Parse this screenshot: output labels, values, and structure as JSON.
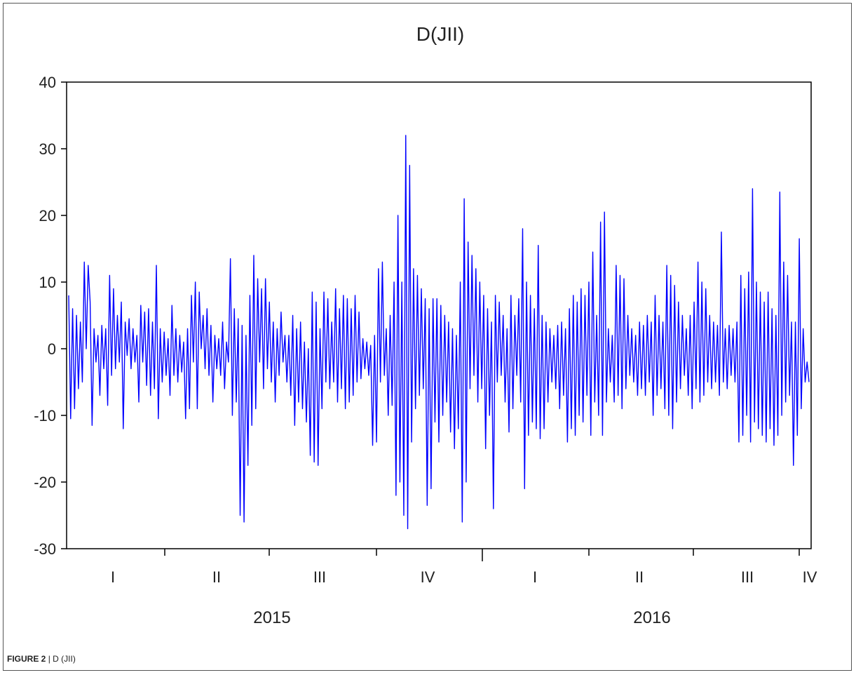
{
  "chart_data": {
    "type": "line",
    "title": "D(JII)",
    "xlabel": "",
    "ylabel": "",
    "ylim": [
      -30,
      40
    ],
    "yticks": [
      40,
      30,
      20,
      10,
      0,
      -10,
      -20,
      -30
    ],
    "grid": false,
    "legend": "none",
    "line_color": "#0000ff",
    "quarter_labels": [
      "I",
      "II",
      "III",
      "IV",
      "I",
      "II",
      "III",
      "IV"
    ],
    "year_labels": [
      "2015",
      "2016"
    ],
    "series": [
      {
        "values": [
          8,
          -10.5,
          6,
          -9,
          5,
          -6,
          4,
          -5,
          13,
          0,
          12.5,
          7,
          -11.5,
          3,
          -2,
          2,
          -7,
          3.5,
          -3,
          3,
          -8.5,
          11,
          -4,
          9,
          -3,
          5,
          -2,
          7,
          -12,
          4,
          -1,
          4.5,
          -3,
          3,
          -2,
          2,
          -8,
          6.5,
          -2,
          5.5,
          -5.5,
          6,
          -7,
          4,
          -6,
          12.5,
          -10.5,
          3,
          -5,
          2.5,
          -4,
          1.5,
          -7,
          6.5,
          -4,
          3,
          -5,
          2,
          -3.5,
          1,
          -10.5,
          3,
          -9,
          8,
          -2,
          10,
          -9,
          8.5,
          0,
          5,
          -3,
          6,
          -4,
          3.5,
          -8,
          2,
          -3,
          1.5,
          -4,
          4,
          -6,
          1,
          -2,
          13.5,
          -10,
          6,
          -8,
          4.5,
          -25,
          3.5,
          -26,
          2,
          -17.5,
          8,
          -11.5,
          14,
          -9,
          10.5,
          -2,
          9,
          -6,
          10.5,
          -3,
          7,
          -5,
          4,
          -8,
          3,
          -4,
          5.5,
          -2,
          2,
          -5,
          2,
          -7,
          5,
          -11.5,
          3,
          -8,
          4,
          -9,
          1,
          -11,
          0,
          -16,
          8.5,
          -17,
          7,
          -17.5,
          3,
          -9,
          8.5,
          -5,
          7.5,
          -6,
          4,
          -5,
          9,
          -8,
          6,
          -6,
          8,
          -9,
          7.5,
          -8,
          6,
          -7,
          8,
          -5,
          5.5,
          -4.5,
          1.5,
          -3,
          1,
          -4,
          0.5,
          -14.5,
          2,
          -14,
          12,
          -5,
          13,
          -4,
          3,
          -10,
          5,
          -8.5,
          10,
          -22,
          20,
          -20,
          10,
          -25,
          32,
          -27,
          27.5,
          -14,
          12,
          -9,
          11,
          -7,
          9,
          -6,
          7.5,
          -23.5,
          6,
          -21,
          7.5,
          -11,
          7.5,
          -14,
          6.5,
          -10,
          5,
          -8,
          4,
          -12.5,
          3,
          -15,
          2,
          -12,
          10,
          -26,
          22.5,
          -20,
          16,
          -6,
          14,
          -4,
          12,
          -8,
          10,
          -6,
          8,
          -15,
          6,
          -10,
          4,
          -24,
          8,
          -5,
          7,
          -4,
          5,
          -8,
          3,
          -12.5,
          8,
          -9,
          5,
          -4,
          7.5,
          -8,
          18,
          -21,
          10,
          -13,
          8,
          -11,
          6,
          -12,
          15.5,
          -13.5,
          5,
          -12,
          4,
          -8,
          3,
          -5,
          2,
          -6,
          3.5,
          -9,
          4,
          -7,
          3,
          -14,
          6,
          -12,
          8,
          -13,
          7,
          -10,
          9,
          -11,
          8,
          -7,
          10,
          -13,
          14.5,
          -8,
          5,
          -10,
          19,
          -13,
          20.5,
          -8,
          3,
          -5,
          2,
          -8,
          12.5,
          -7,
          11,
          -9,
          10.5,
          -6,
          5,
          -4,
          3,
          -5,
          2,
          -7,
          4,
          -6,
          3.5,
          -7,
          5,
          -5,
          4,
          -10,
          8,
          -7,
          5,
          -6,
          4,
          -9,
          12.5,
          -10,
          11,
          -12,
          9.5,
          -8,
          7,
          -6,
          5,
          -4,
          3,
          -7,
          5,
          -9,
          7,
          -6,
          13,
          -8,
          10,
          -7,
          9,
          -5,
          5,
          -6,
          4,
          -5,
          3.5,
          -7,
          17.5,
          -5,
          3,
          -6,
          3.5,
          -4,
          3,
          -5,
          4,
          -14,
          11,
          -13,
          9,
          -10,
          11.5,
          -14,
          24,
          -11,
          10,
          -12,
          8.5,
          -13,
          7,
          -14,
          8.5,
          -12,
          6,
          -14.5,
          5,
          -13,
          23.5,
          -10,
          13,
          -8,
          11,
          -7,
          4,
          -17.5,
          4,
          -13,
          16.5,
          -9,
          3,
          -5,
          -2,
          -5
        ]
      }
    ]
  },
  "caption": {
    "label": "FIGURE 2",
    "separator": "|",
    "text": "D (JII)"
  }
}
